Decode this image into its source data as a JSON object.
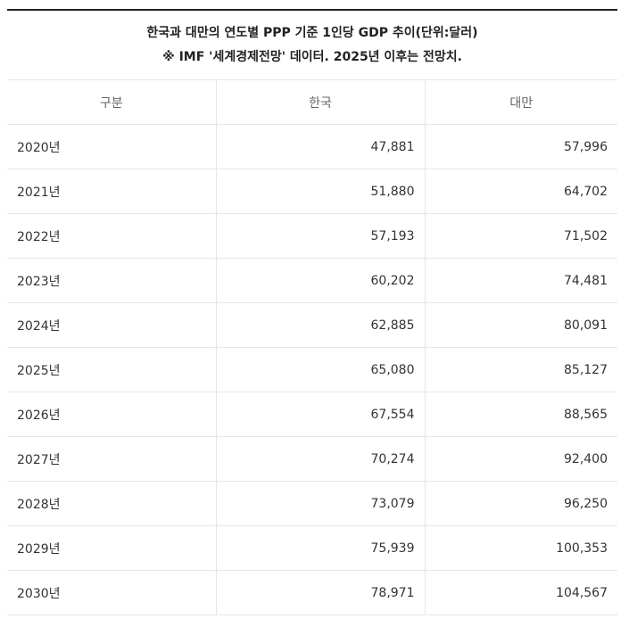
{
  "caption": {
    "line1": "한국과 대만의 연도별 PPP 기준 1인당 GDP 추이(단위:달러)",
    "line2": "※ IMF '세계경제전망' 데이터. 2025년 이후는 전망치."
  },
  "table": {
    "headers": [
      "구분",
      "한국",
      "대만"
    ],
    "rows": [
      [
        "2020년",
        "47,881",
        "57,996"
      ],
      [
        "2021년",
        "51,880",
        "64,702"
      ],
      [
        "2022년",
        "57,193",
        "71,502"
      ],
      [
        "2023년",
        "60,202",
        "74,481"
      ],
      [
        "2024년",
        "62,885",
        "80,091"
      ],
      [
        "2025년",
        "65,080",
        "85,127"
      ],
      [
        "2026년",
        "67,554",
        "88,565"
      ],
      [
        "2027년",
        "70,274",
        "92,400"
      ],
      [
        "2028년",
        "73,079",
        "96,250"
      ],
      [
        "2029년",
        "75,939",
        "100,353"
      ],
      [
        "2030년",
        "78,971",
        "104,567"
      ]
    ]
  }
}
